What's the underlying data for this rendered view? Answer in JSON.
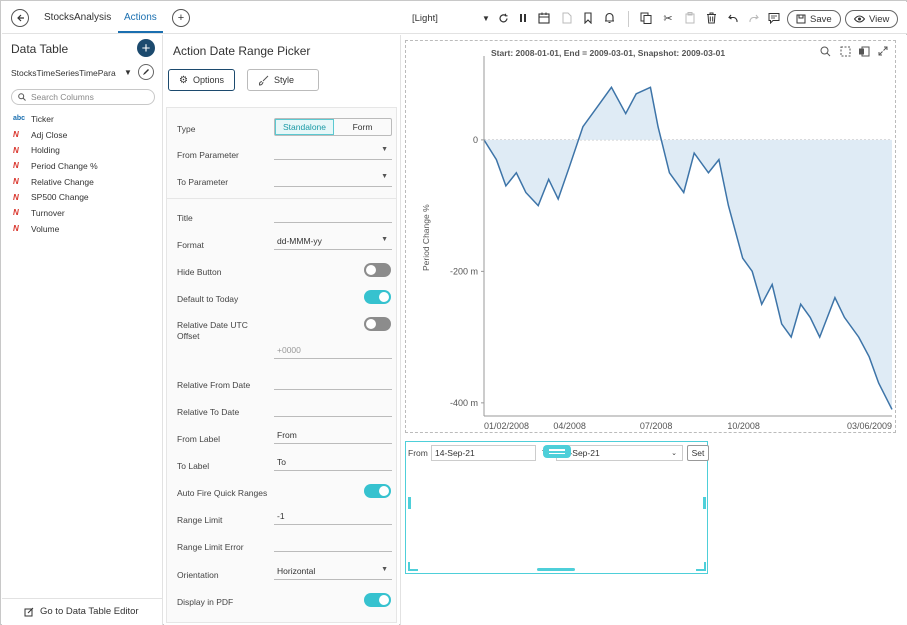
{
  "app": {
    "tabs": [
      {
        "label": "StocksAnalysis"
      },
      {
        "label": "Actions"
      }
    ],
    "theme": "[Light]",
    "save_label": "Save",
    "view_label": "View"
  },
  "left": {
    "title": "Data Table",
    "datasource": "StocksTimeSeriesTimePara",
    "search_placeholder": "Search Columns",
    "columns": [
      {
        "label": "Ticker",
        "type_icon": "abc"
      },
      {
        "label": "Adj Close",
        "type_icon": "N"
      },
      {
        "label": "Holding",
        "type_icon": "N"
      },
      {
        "label": "Period Change %",
        "type_icon": "N"
      },
      {
        "label": "Relative Change",
        "type_icon": "N"
      },
      {
        "label": "SP500 Change",
        "type_icon": "N"
      },
      {
        "label": "Turnover",
        "type_icon": "N"
      },
      {
        "label": "Volume",
        "type_icon": "N"
      }
    ],
    "goto_label": "Go to Data Table Editor"
  },
  "settings": {
    "title": "Action Date Range Picker",
    "options_label": "Options",
    "style_label": "Style",
    "type_label": "Type",
    "type_options": [
      "Standalone",
      "Form"
    ],
    "type_selected": "Standalone",
    "from_param_label": "From Parameter",
    "to_param_label": "To Parameter",
    "title_label": "Title",
    "format_label": "Format",
    "format_value": "dd-MMM-yy",
    "hide_button_label": "Hide Button",
    "hide_button_on": false,
    "default_today_label": "Default to Today",
    "default_today_on": true,
    "utc_offset_label": "Relative Date UTC Offset",
    "utc_offset_on": false,
    "utc_offset_placeholder": "+0000",
    "rel_from_label": "Relative From Date",
    "rel_to_label": "Relative To Date",
    "from_label_label": "From Label",
    "from_label_value": "From",
    "to_label_label": "To Label",
    "to_label_value": "To",
    "auto_fire_label": "Auto Fire Quick Ranges",
    "auto_fire_on": true,
    "range_limit_label": "Range Limit",
    "range_limit_value": "-1",
    "range_limit_error_label": "Range Limit Error",
    "orientation_label": "Orientation",
    "orientation_value": "Horizontal",
    "display_pdf_label": "Display in PDF",
    "display_pdf_on": true
  },
  "chart": {
    "header": "Start: 2008-01-01, End = 2009-03-01, Snapshot: 2009-03-01",
    "ylabel": "Period Change %",
    "yticks": [
      "0",
      "-200 m",
      "-400 m"
    ],
    "xticks": [
      "01/02/2008",
      "04/2008",
      "07/2008",
      "10/2008",
      "03/06/2009"
    ],
    "line_color": "#3d74a8",
    "fill_color": "#dfebf5"
  },
  "chart_data": {
    "type": "area",
    "title": "",
    "xlabel": "",
    "ylabel": "Period Change %",
    "ylim": [
      -0.42,
      0.12
    ],
    "x_range": [
      "2008-01-02",
      "2009-03-06"
    ],
    "series": [
      {
        "x": [
          "2008-01-02",
          "2008-01-15",
          "2008-01-25",
          "2008-02-05",
          "2008-02-15",
          "2008-02-28",
          "2008-03-10",
          "2008-03-20",
          "2008-04-01",
          "2008-04-15",
          "2008-04-30",
          "2008-05-15",
          "2008-05-30",
          "2008-06-10",
          "2008-06-25",
          "2008-07-03",
          "2008-07-15",
          "2008-07-30",
          "2008-08-10",
          "2008-08-25",
          "2008-09-05",
          "2008-09-15",
          "2008-09-30",
          "2008-10-10",
          "2008-10-20",
          "2008-10-31",
          "2008-11-10",
          "2008-11-20",
          "2008-11-30",
          "2008-12-10",
          "2008-12-20",
          "2009-01-05",
          "2009-01-15",
          "2009-01-30",
          "2009-02-10",
          "2009-02-20",
          "2009-03-06"
        ],
        "values": [
          0.0,
          -0.03,
          -0.07,
          -0.05,
          -0.08,
          -0.1,
          -0.06,
          -0.09,
          -0.04,
          0.02,
          0.05,
          0.08,
          0.04,
          0.07,
          0.08,
          0.02,
          -0.05,
          -0.08,
          -0.02,
          -0.05,
          -0.03,
          -0.1,
          -0.18,
          -0.2,
          -0.25,
          -0.22,
          -0.28,
          -0.3,
          -0.25,
          -0.27,
          -0.3,
          -0.24,
          -0.27,
          -0.3,
          -0.33,
          -0.37,
          -0.41
        ]
      }
    ]
  },
  "picker": {
    "from_label": "From",
    "from_value": "14-Sep-21",
    "to_label": "To",
    "to_value": "14-Sep-21",
    "set_label": "Set"
  }
}
